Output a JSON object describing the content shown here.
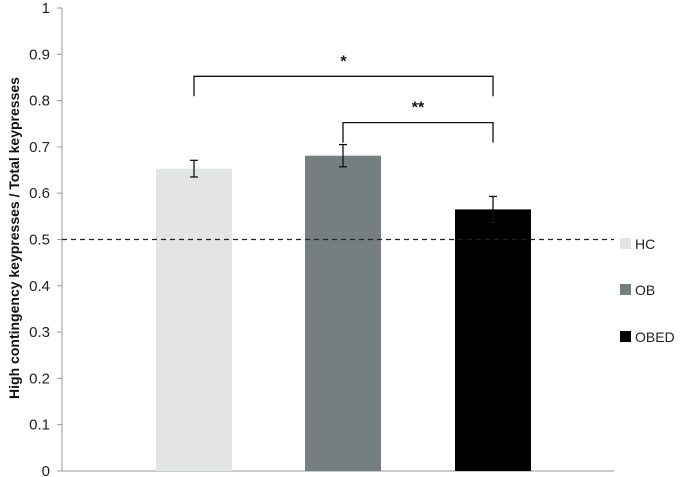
{
  "chart_data": {
    "type": "bar",
    "categories": [
      "HC",
      "OB",
      "OBED"
    ],
    "values": [
      0.653,
      0.681,
      0.565
    ],
    "errors": [
      0.018,
      0.024,
      0.028
    ],
    "colors": [
      "#e2e5e4",
      "#767f80",
      "#000000"
    ],
    "ylabel": "High contingency keypresses / Total keypresses",
    "xlabel": "",
    "ylim": [
      0,
      1
    ],
    "yticks": [
      "0",
      "0.1",
      "0.2",
      "0.3",
      "0.4",
      "0.5",
      "0.6",
      "0.7",
      "0.8",
      "0.9",
      "1"
    ],
    "reference_line": 0.5,
    "legend": [
      {
        "label": "HC",
        "color": "#e2e5e4"
      },
      {
        "label": "OB",
        "color": "#767f80"
      },
      {
        "label": "OBED",
        "color": "#000000"
      }
    ],
    "legend_position": "right",
    "grid": false,
    "annotations": [
      {
        "label": "*",
        "from": "HC",
        "to": "OBED",
        "level": 0.9
      },
      {
        "label": "**",
        "from": "OB",
        "to": "OBED",
        "level": 0.8
      }
    ]
  }
}
